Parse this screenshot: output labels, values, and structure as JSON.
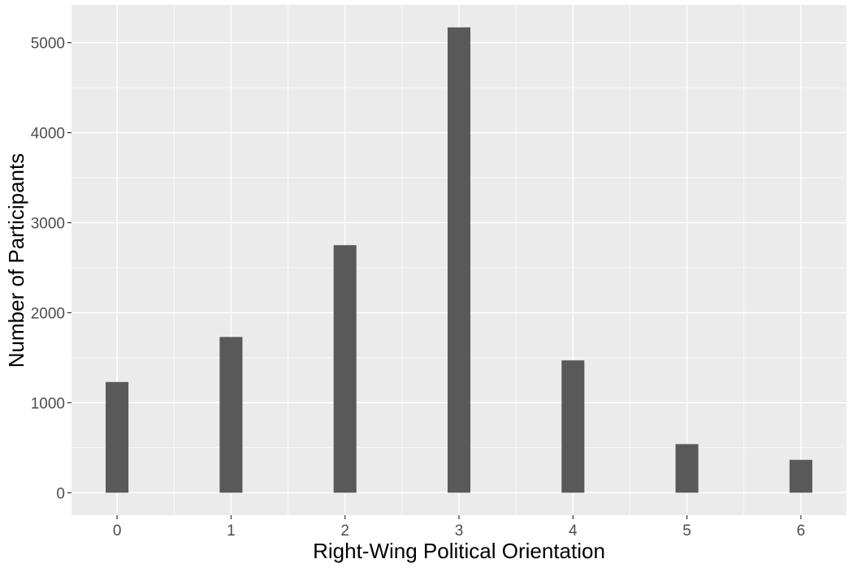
{
  "chart_data": {
    "type": "bar",
    "title": "",
    "xlabel": "Right-Wing Political Orientation",
    "ylabel": "Number of Participants",
    "x": [
      0,
      1,
      2,
      3,
      4,
      5,
      6
    ],
    "x_tick_labels": [
      "0",
      "1",
      "2",
      "3",
      "4",
      "5",
      "6"
    ],
    "values": [
      1230,
      1730,
      2750,
      5170,
      1470,
      540,
      365
    ],
    "y_ticks": [
      0,
      1000,
      2000,
      3000,
      4000,
      5000
    ],
    "y_tick_labels": [
      "0",
      "1000",
      "2000",
      "3000",
      "4000",
      "5000"
    ],
    "ylim": [
      -250,
      5420
    ],
    "xlim": [
      -0.4,
      6.4
    ],
    "grid": true,
    "legend": "none",
    "colors": {
      "panel": "#ebebeb",
      "grid": "#ffffff",
      "bar": "#595959",
      "tick_text": "#4d4d4d",
      "axis_title": "#000000"
    }
  }
}
